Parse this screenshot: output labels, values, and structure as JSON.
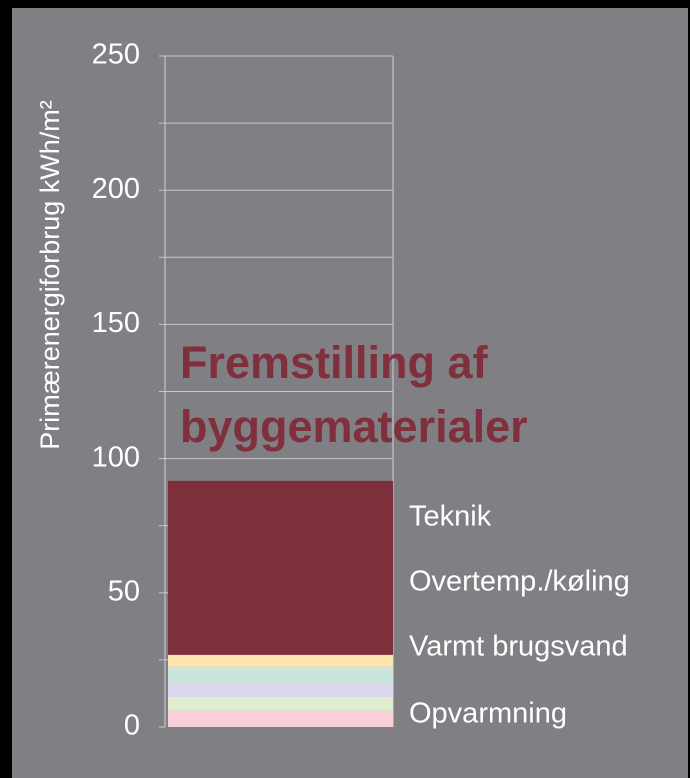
{
  "chart_data": {
    "type": "stacked_bar",
    "y_label": "Primærenergiforbrug kWh/m²",
    "ylim": [
      0,
      250
    ],
    "yticks": [
      0,
      50,
      100,
      150,
      200,
      250
    ],
    "minor_yticks": [
      25,
      75,
      125,
      175,
      225
    ],
    "grid": true,
    "series": [
      {
        "color": "#f9d0d7",
        "values": [
          6.0
        ]
      },
      {
        "color": "#e0ecce",
        "values": [
          5.2
        ]
      },
      {
        "color": "#dcd8ee",
        "values": [
          5.2
        ]
      },
      {
        "color": "#c9e5dd",
        "values": [
          6.0
        ]
      },
      {
        "color": "#fde5b2",
        "values": [
          4.5
        ]
      },
      {
        "color": "#7d2f3b",
        "values": [
          64.8
        ]
      }
    ],
    "annotation_title": [
      "Fremstilling af",
      "byggematerialer"
    ],
    "annotations": [
      "Teknik",
      "Overtemp./køling",
      "Varmt brugsvand",
      "Opvarmning"
    ]
  }
}
